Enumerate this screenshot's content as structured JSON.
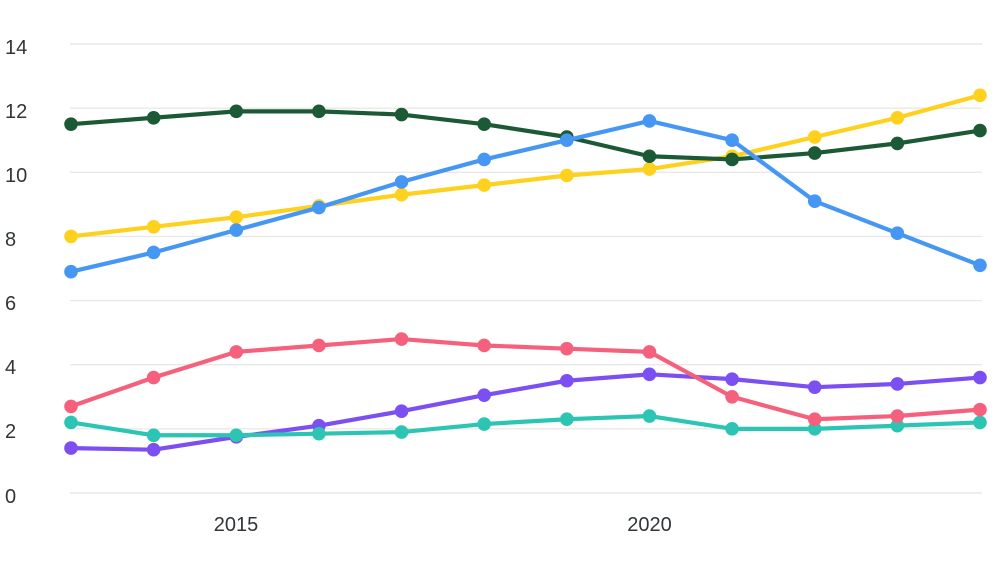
{
  "page": {
    "background": "#ffffff"
  },
  "chart": {
    "text_color": "#30363a",
    "grid_color": "#e9e9e6"
  },
  "chart_data": {
    "type": "line",
    "x": [
      2013,
      2014,
      2015,
      2016,
      2017,
      2018,
      2019,
      2020,
      2021,
      2022,
      2023,
      2024
    ],
    "x_tick_labels": [
      "2015",
      "2020"
    ],
    "x_tick_years": [
      2015,
      2020
    ],
    "y_ticks": [
      0,
      2,
      4,
      6,
      8,
      10,
      12,
      14
    ],
    "ylim": [
      0,
      14
    ],
    "grid": "horizontal-only",
    "legend_position": "none",
    "marker": "circle",
    "series": [
      {
        "name": "purple",
        "color": "#7b4ff2",
        "values": [
          1.4,
          1.35,
          1.75,
          2.1,
          2.55,
          3.05,
          3.5,
          3.7,
          3.55,
          3.3,
          3.4,
          3.6
        ]
      },
      {
        "name": "teal",
        "color": "#2cc5b3",
        "values": [
          2.2,
          1.8,
          1.8,
          1.85,
          1.9,
          2.15,
          2.3,
          2.4,
          2.0,
          2.0,
          2.1,
          2.2
        ]
      },
      {
        "name": "pink",
        "color": "#f5617c",
        "values": [
          2.7,
          3.6,
          4.4,
          4.6,
          4.8,
          4.6,
          4.5,
          4.4,
          3.0,
          2.3,
          2.4,
          2.6
        ]
      },
      {
        "name": "yellow",
        "color": "#fdd11e",
        "values": [
          8.0,
          8.3,
          8.6,
          8.95,
          9.3,
          9.6,
          9.9,
          10.1,
          10.5,
          11.1,
          11.7,
          12.4
        ]
      },
      {
        "name": "dark-green",
        "color": "#1b5a34",
        "values": [
          11.5,
          11.7,
          11.9,
          11.9,
          11.8,
          11.5,
          11.1,
          10.5,
          10.4,
          10.6,
          10.9,
          11.3
        ]
      },
      {
        "name": "blue",
        "color": "#4697f3",
        "values": [
          6.9,
          7.5,
          8.2,
          8.9,
          9.7,
          10.4,
          11.0,
          11.6,
          11.0,
          9.1,
          8.1,
          7.1
        ]
      }
    ]
  }
}
